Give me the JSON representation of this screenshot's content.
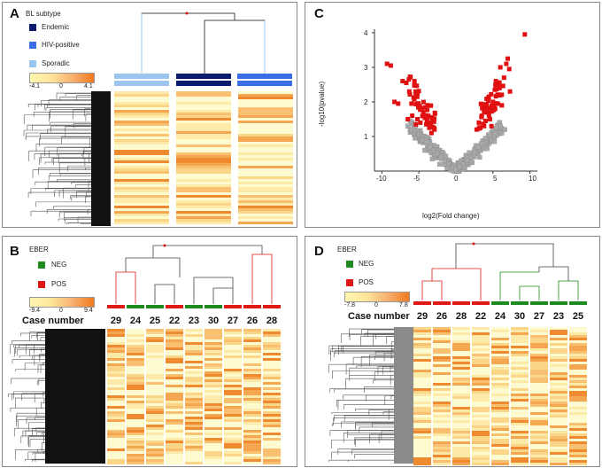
{
  "colors": {
    "endemic": "#0b1b6e",
    "hiv": "#3b6ee6",
    "sporadic": "#9cc6f0",
    "neg": "#1f8a1f",
    "pos": "#e01818",
    "point_up": "#e01010",
    "point_ns": "#a8a8a8"
  },
  "panelA": {
    "label": "A",
    "legend_title": "BL subtype",
    "legend": [
      {
        "name": "Endemic",
        "color": "#0b1b6e"
      },
      {
        "name": "HIV-positive",
        "color": "#3b6ee6"
      },
      {
        "name": "Sporadic",
        "color": "#9cc6f0"
      }
    ],
    "scale_min": "-4.1",
    "scale_mid": "0",
    "scale_max": "4.1"
  },
  "panelB": {
    "label": "B",
    "legend_title": "EBER",
    "legend": [
      {
        "name": "NEG",
        "color": "#1f8a1f"
      },
      {
        "name": "POS",
        "color": "#e01818"
      }
    ],
    "scale_min": "-9.4",
    "scale_mid": "0",
    "scale_max": "9.4",
    "case_label": "Case number",
    "cases": [
      "29",
      "24",
      "25",
      "22",
      "23",
      "30",
      "27",
      "26",
      "28"
    ],
    "eber": [
      "POS",
      "NEG",
      "NEG",
      "POS",
      "NEG",
      "NEG",
      "POS",
      "POS",
      "POS"
    ]
  },
  "panelC": {
    "label": "C",
    "xlabel": "log2(Fold change)",
    "ylabel": "-log10(pvalue)",
    "xticks": [
      "-10",
      "-5",
      "0",
      "5",
      "10"
    ],
    "yticks": [
      "1",
      "2",
      "3",
      "4"
    ]
  },
  "panelD": {
    "label": "D",
    "legend_title": "EBER",
    "legend": [
      {
        "name": "NEG",
        "color": "#1f8a1f"
      },
      {
        "name": "POS",
        "color": "#e01818"
      }
    ],
    "scale_min": "-7.8",
    "scale_mid": "0",
    "scale_max": "7.8",
    "case_label": "Case number",
    "cases": [
      "29",
      "26",
      "28",
      "22",
      "24",
      "30",
      "27",
      "23",
      "25"
    ],
    "eber": [
      "POS",
      "POS",
      "POS",
      "POS",
      "NEG",
      "NEG",
      "NEG",
      "NEG",
      "NEG"
    ]
  },
  "chart_data": {
    "type": "scatter",
    "title": "",
    "xlabel": "log2(Fold change)",
    "ylabel": "-log10(pvalue)",
    "xlim": [
      -11,
      11
    ],
    "ylim": [
      0,
      4.1
    ],
    "series": [
      {
        "name": "significant",
        "color": "#e01010",
        "points": [
          [
            -9.3,
            3.1
          ],
          [
            -8.8,
            3.05
          ],
          [
            -8.3,
            2.0
          ],
          [
            -7.8,
            1.95
          ],
          [
            -7.2,
            2.6
          ],
          [
            -6.7,
            2.55
          ],
          [
            -6.3,
            2.3
          ],
          [
            -6.0,
            1.95
          ],
          [
            -5.6,
            2.6
          ],
          [
            -5.2,
            1.5
          ],
          [
            -4.8,
            1.4
          ],
          [
            -4.4,
            1.7
          ],
          [
            -4.0,
            1.35
          ],
          [
            -3.6,
            1.25
          ],
          [
            -3.2,
            1.55
          ],
          [
            -2.9,
            1.2
          ],
          [
            -6.5,
            1.5
          ],
          [
            -5.9,
            1.6
          ],
          [
            -5.4,
            1.35
          ],
          [
            -3.3,
            1.1
          ],
          [
            2.8,
            1.2
          ],
          [
            3.1,
            1.4
          ],
          [
            3.5,
            1.6
          ],
          [
            3.8,
            1.3
          ],
          [
            4.2,
            1.75
          ],
          [
            4.6,
            1.5
          ],
          [
            5.0,
            2.0
          ],
          [
            5.3,
            1.8
          ],
          [
            5.6,
            2.2
          ],
          [
            5.9,
            2.4
          ],
          [
            6.2,
            1.9
          ],
          [
            6.5,
            2.7
          ],
          [
            6.8,
            3.1
          ],
          [
            7.0,
            3.25
          ],
          [
            7.2,
            2.95
          ],
          [
            7.3,
            2.3
          ],
          [
            6.0,
            3.0
          ],
          [
            5.4,
            2.6
          ],
          [
            4.8,
            1.3
          ],
          [
            9.3,
            3.95
          ],
          [
            3.3,
            1.25
          ],
          [
            4.0,
            1.45
          ]
        ]
      },
      {
        "name": "not significant",
        "color": "#a8a8a8",
        "points": [
          [
            -6.0,
            1.2
          ],
          [
            -5.0,
            1.05
          ],
          [
            -4.5,
            0.9
          ],
          [
            -4.0,
            0.85
          ],
          [
            -3.5,
            0.7
          ],
          [
            -3.0,
            0.6
          ],
          [
            -2.5,
            0.5
          ],
          [
            -2.0,
            0.4
          ],
          [
            -1.5,
            0.3
          ],
          [
            -1.0,
            0.2
          ],
          [
            -0.5,
            0.1
          ],
          [
            0,
            0.05
          ],
          [
            0.5,
            0.12
          ],
          [
            1.0,
            0.2
          ],
          [
            1.5,
            0.3
          ],
          [
            2.0,
            0.4
          ],
          [
            2.5,
            0.55
          ],
          [
            3.0,
            0.7
          ],
          [
            3.5,
            0.8
          ],
          [
            4.0,
            0.95
          ],
          [
            4.5,
            1.05
          ],
          [
            5.0,
            1.2
          ],
          [
            5.5,
            1.25
          ],
          [
            6.0,
            1.3
          ],
          [
            -5.5,
            0.95
          ],
          [
            -4.2,
            0.6
          ],
          [
            -3.2,
            0.35
          ],
          [
            -2.2,
            0.2
          ],
          [
            -1.2,
            0.08
          ],
          [
            1.2,
            0.1
          ],
          [
            2.2,
            0.25
          ],
          [
            3.2,
            0.4
          ],
          [
            4.2,
            0.65
          ],
          [
            5.2,
            0.85
          ],
          [
            6.2,
            1.1
          ],
          [
            -6.5,
            1.3
          ],
          [
            6.6,
            1.2
          ]
        ]
      }
    ]
  }
}
